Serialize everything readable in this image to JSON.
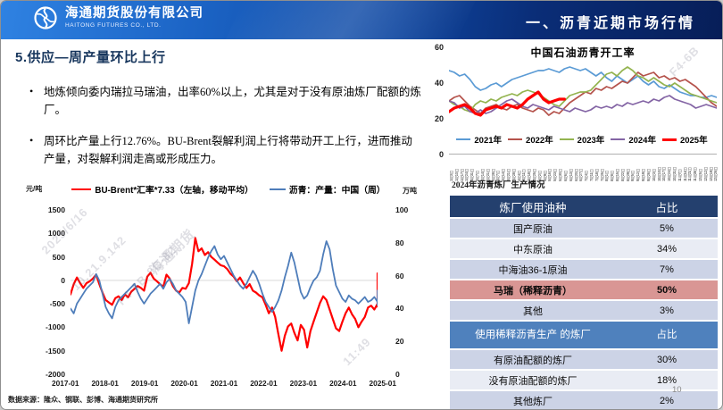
{
  "header": {
    "company_cn": "海通期货股份有限公司",
    "company_en": "HAITONG FUTURES CO., LTD.",
    "section_title": "一、沥青近期市场行情"
  },
  "page": {
    "title": "5.供应—周产量环比上行",
    "bullets": [
      "地炼倾向委内瑞拉马瑞油，出率60%以上，尤其是对于没有原油炼厂配额的炼厂。",
      "周环比产量上行12.76%。BU-Brent裂解利润上行将带动开工上行，进而推动产量，对裂解利润走高或形成压力。"
    ],
    "source": "数据来源：隆众、钢联、彭博、海通期货研究所",
    "page_number": "10"
  },
  "colors": {
    "accent_navy": "#17365d",
    "table_header_dark": "#24406e",
    "table_header_blue": "#4f81bd",
    "table_highlight": "#d99694",
    "band_dark": "#ccd3e6",
    "band_light": "#e9ecf4"
  },
  "chart_data": [
    {
      "type": "line",
      "title": "",
      "unit_left": "元/吨",
      "unit_right": "万吨",
      "ylim_left": [
        -2000,
        1500
      ],
      "yticks_left": [
        1500,
        1000,
        500,
        0,
        -500,
        -1000,
        -1500,
        -2000
      ],
      "ylim_right": [
        0,
        100
      ],
      "yticks_right": [
        100,
        80,
        60,
        40,
        20,
        0
      ],
      "x_labels": [
        "2017-01",
        "2018-01",
        "2019-01",
        "2020-01",
        "2021-01",
        "2022-01",
        "2023-01",
        "2024-01",
        "2025-01"
      ],
      "grid": "zero-line only",
      "legend_position": "top",
      "series": [
        {
          "name": "BU-Brent*汇率*7.33（左轴，移动平均）",
          "axis": "left",
          "color": "#ff0000",
          "width": 2.2,
          "values": [
            -300,
            -80,
            60,
            -60,
            -160,
            -60,
            -20,
            40,
            120,
            -80,
            -260,
            -420,
            -470,
            -520,
            -380,
            -340,
            -420,
            -300,
            -360,
            -240,
            -180,
            -120,
            -160,
            -220,
            80,
            160,
            40,
            -20,
            -80,
            -140,
            120,
            40,
            -120,
            -220,
            -260,
            -160,
            -180,
            -60,
            350,
            900,
            620,
            680,
            540,
            600,
            500,
            440,
            380,
            320,
            300,
            240,
            140,
            80,
            -20,
            60,
            -60,
            -160,
            -80,
            -220,
            -260,
            -320,
            -360,
            -520,
            -700,
            -580,
            -780,
            -1150,
            -1500,
            -1180,
            -980,
            -920,
            -1120,
            -1280,
            -950,
            -1050,
            -1430,
            -1080,
            -880,
            -680,
            -480,
            -340,
            -420,
            -620,
            -820,
            -1020,
            -1080,
            -880,
            -700,
            -580,
            -720,
            -820,
            -1000,
            -880,
            -780,
            -580,
            -540,
            -620,
            -500,
            -440,
            -560,
            -380,
            -280,
            -80,
            150
          ]
        },
        {
          "name": "沥青：产量：中国（周）",
          "axis": "right",
          "color": "#4e7dba",
          "width": 1.8,
          "values": [
            40,
            37,
            43,
            46,
            49,
            52,
            54,
            56,
            61,
            57,
            49,
            41,
            37,
            34,
            41,
            45,
            47,
            49,
            51,
            53,
            55,
            50,
            46,
            43,
            46,
            49,
            51,
            53,
            55,
            52,
            56,
            58,
            55,
            51,
            49,
            47,
            44,
            31,
            41,
            51,
            57,
            61,
            66,
            71,
            75,
            78,
            73,
            70,
            72,
            68,
            64,
            60,
            57,
            54,
            52,
            55,
            59,
            63,
            60,
            55,
            49,
            44,
            41,
            38,
            41,
            45,
            51,
            59,
            66,
            74,
            68,
            59,
            50,
            46,
            48,
            53,
            57,
            59,
            63,
            73,
            81,
            76,
            64,
            54,
            50,
            46,
            44,
            48,
            46,
            45,
            43,
            45,
            47,
            44,
            45,
            47,
            44,
            42,
            46,
            48,
            46,
            49,
            51
          ]
        }
      ]
    },
    {
      "type": "line",
      "title": "中国石油沥青开工率",
      "ylim": [
        0,
        60
      ],
      "yticks": [
        60,
        40,
        20,
        0
      ],
      "legend_position": "bottom",
      "x_tick_labels": [
        "1月3日",
        "1月10日",
        "1月17日",
        "1月24日",
        "1月31日",
        "2月7日",
        "2月14日",
        "2月21日",
        "2月28日",
        "3月7日",
        "3月14日",
        "3月21日",
        "3月28日",
        "4月4日",
        "4月11日",
        "4月18日",
        "4月25日",
        "5月2日",
        "5月9日",
        "5月16日",
        "5月23日",
        "5月30日",
        "6月6日",
        "6月13日",
        "6月20日",
        "6月27日",
        "7月4日",
        "7月11日",
        "7月18日",
        "7月25日",
        "8月1日",
        "8月8日",
        "8月15日",
        "8月22日",
        "8月29日",
        "9月5日",
        "9月12日",
        "9月19日",
        "9月26日",
        "10月3日",
        "10月10日",
        "10月17日",
        "10月24日",
        "10月31日",
        "11月7日",
        "11月14日",
        "11月21日",
        "11月28日",
        "12月5日",
        "12月12日",
        "12月19日",
        "12月26日"
      ],
      "series": [
        {
          "name": "2021年",
          "color": "#5b9bd5",
          "width": 1.7,
          "values": [
            47,
            46,
            44,
            45,
            42,
            38,
            36,
            37,
            39,
            40,
            38,
            40,
            42,
            43,
            44,
            45,
            46,
            47,
            47,
            48,
            47,
            46,
            48,
            49,
            48,
            47,
            48,
            46,
            44,
            46,
            43,
            41,
            44,
            42,
            40,
            42,
            44,
            41,
            39,
            41,
            38,
            37,
            39,
            37,
            35,
            34,
            33,
            33,
            32,
            32,
            33,
            32
          ]
        },
        {
          "name": "2022年",
          "color": "#b5534c",
          "width": 1.7,
          "values": [
            30,
            32,
            33,
            30,
            27,
            25,
            23,
            26,
            27,
            28,
            26,
            25,
            27,
            28,
            26,
            25,
            24,
            26,
            25,
            22,
            24,
            23,
            26,
            29,
            31,
            33,
            35,
            34,
            37,
            36,
            38,
            37,
            39,
            41,
            40,
            43,
            46,
            44,
            45,
            46,
            43,
            44,
            42,
            43,
            41,
            42,
            40,
            38,
            35,
            32,
            29,
            27
          ]
        },
        {
          "name": "2023年",
          "color": "#94b450",
          "width": 1.7,
          "values": [
            30,
            28,
            27,
            25,
            24,
            28,
            30,
            29,
            31,
            30,
            32,
            33,
            34,
            33,
            35,
            36,
            35,
            34,
            32,
            30,
            28,
            27,
            30,
            33,
            34,
            35,
            35,
            36,
            39,
            42,
            45,
            46,
            44,
            47,
            49,
            47,
            44,
            43,
            41,
            43,
            41,
            39,
            38,
            40,
            38,
            36,
            34,
            33,
            32,
            31,
            30,
            29
          ]
        },
        {
          "name": "2024年",
          "color": "#8465a5",
          "width": 1.7,
          "values": [
            30,
            29,
            26,
            27,
            24,
            23,
            25,
            23,
            24,
            26,
            28,
            30,
            31,
            29,
            27,
            26,
            28,
            27,
            26,
            25,
            27,
            26,
            25,
            24,
            26,
            25,
            24,
            25,
            27,
            26,
            27,
            26,
            28,
            27,
            29,
            28,
            29,
            30,
            29,
            31,
            30,
            32,
            33,
            31,
            30,
            29,
            28,
            26,
            27,
            28,
            27,
            26
          ]
        },
        {
          "name": "2025年",
          "color": "#ff0000",
          "width": 3.2,
          "values": [
            24,
            26,
            27,
            28,
            26,
            23,
            22,
            25,
            26,
            27,
            26,
            28,
            27,
            26,
            28,
            31,
            33,
            35,
            31,
            29,
            30,
            31,
            31
          ]
        }
      ]
    }
  ],
  "table": {
    "title": "2024年沥青炼厂生产情况",
    "header1": {
      "col1": "炼厂使用油种",
      "col2": "占比"
    },
    "rows1": [
      {
        "label": "国产原油",
        "value": "5%"
      },
      {
        "label": "中东原油",
        "value": "34%"
      },
      {
        "label": "中海油36-1原油",
        "value": "7%"
      },
      {
        "label": "马瑞（稀释沥青）",
        "value": "50%"
      },
      {
        "label": "其他",
        "value": "3%"
      }
    ],
    "header2": {
      "col1": "使用稀释沥青生产 的炼厂",
      "col2": "占比"
    },
    "rows2": [
      {
        "label": "有原油配额的炼厂",
        "value": "30%"
      },
      {
        "label": "没有原油配额的炼厂",
        "value": "18%"
      },
      {
        "label": "其他炼厂",
        "value": "2%"
      }
    ]
  },
  "watermarks": [
    "2025/6/16",
    "10.21.9.142",
    "F4-6B-8C-82",
    "海通期货",
    "11:49",
    "F4-6B"
  ]
}
